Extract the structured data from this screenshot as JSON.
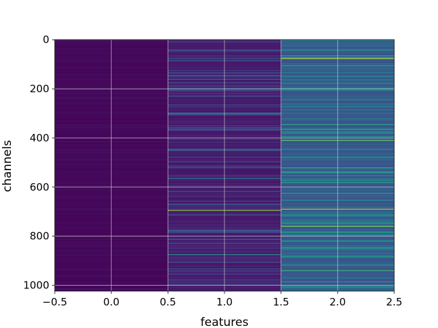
{
  "chart_data": {
    "type": "heatmap",
    "title": "",
    "xlabel": "features",
    "ylabel": "channels",
    "xlim": [
      -0.5,
      2.5
    ],
    "ylim": [
      1023.5,
      -0.5
    ],
    "x_ticks": [
      -0.5,
      0.0,
      0.5,
      1.0,
      1.5,
      2.0,
      2.5
    ],
    "x_tick_labels": [
      "−0.5",
      "0.0",
      "0.5",
      "1.0",
      "1.5",
      "2.0",
      "2.5"
    ],
    "y_ticks": [
      0,
      200,
      400,
      600,
      800,
      1000
    ],
    "y_tick_labels": [
      "0",
      "200",
      "400",
      "600",
      "800",
      "1000"
    ],
    "grid": true,
    "colormap": "viridis",
    "columns": [
      0,
      1,
      2
    ],
    "rows": 1024,
    "column_profiles": [
      {
        "column": 0,
        "base_level": 0.02,
        "spread": 0.04,
        "highlight_rows": []
      },
      {
        "column": 1,
        "base_level": 0.08,
        "spread": 0.22,
        "highlight_rows": [
          {
            "row": 300,
            "level": 0.5
          },
          {
            "row": 450,
            "level": 0.45
          },
          {
            "row": 695,
            "level": 0.85
          },
          {
            "row": 875,
            "level": 0.5
          },
          {
            "row": 565,
            "level": 0.45
          }
        ]
      },
      {
        "column": 2,
        "base_level": 0.25,
        "spread": 0.35,
        "highlight_rows": [
          {
            "row": 75,
            "level": 0.95
          },
          {
            "row": 410,
            "level": 0.75
          },
          {
            "row": 690,
            "level": 0.9
          },
          {
            "row": 760,
            "level": 0.8
          },
          {
            "row": 940,
            "level": 0.7
          }
        ]
      }
    ]
  },
  "colors": {
    "background": "#ffffff",
    "grid": "#d0d0d0",
    "axis": "#000000"
  }
}
